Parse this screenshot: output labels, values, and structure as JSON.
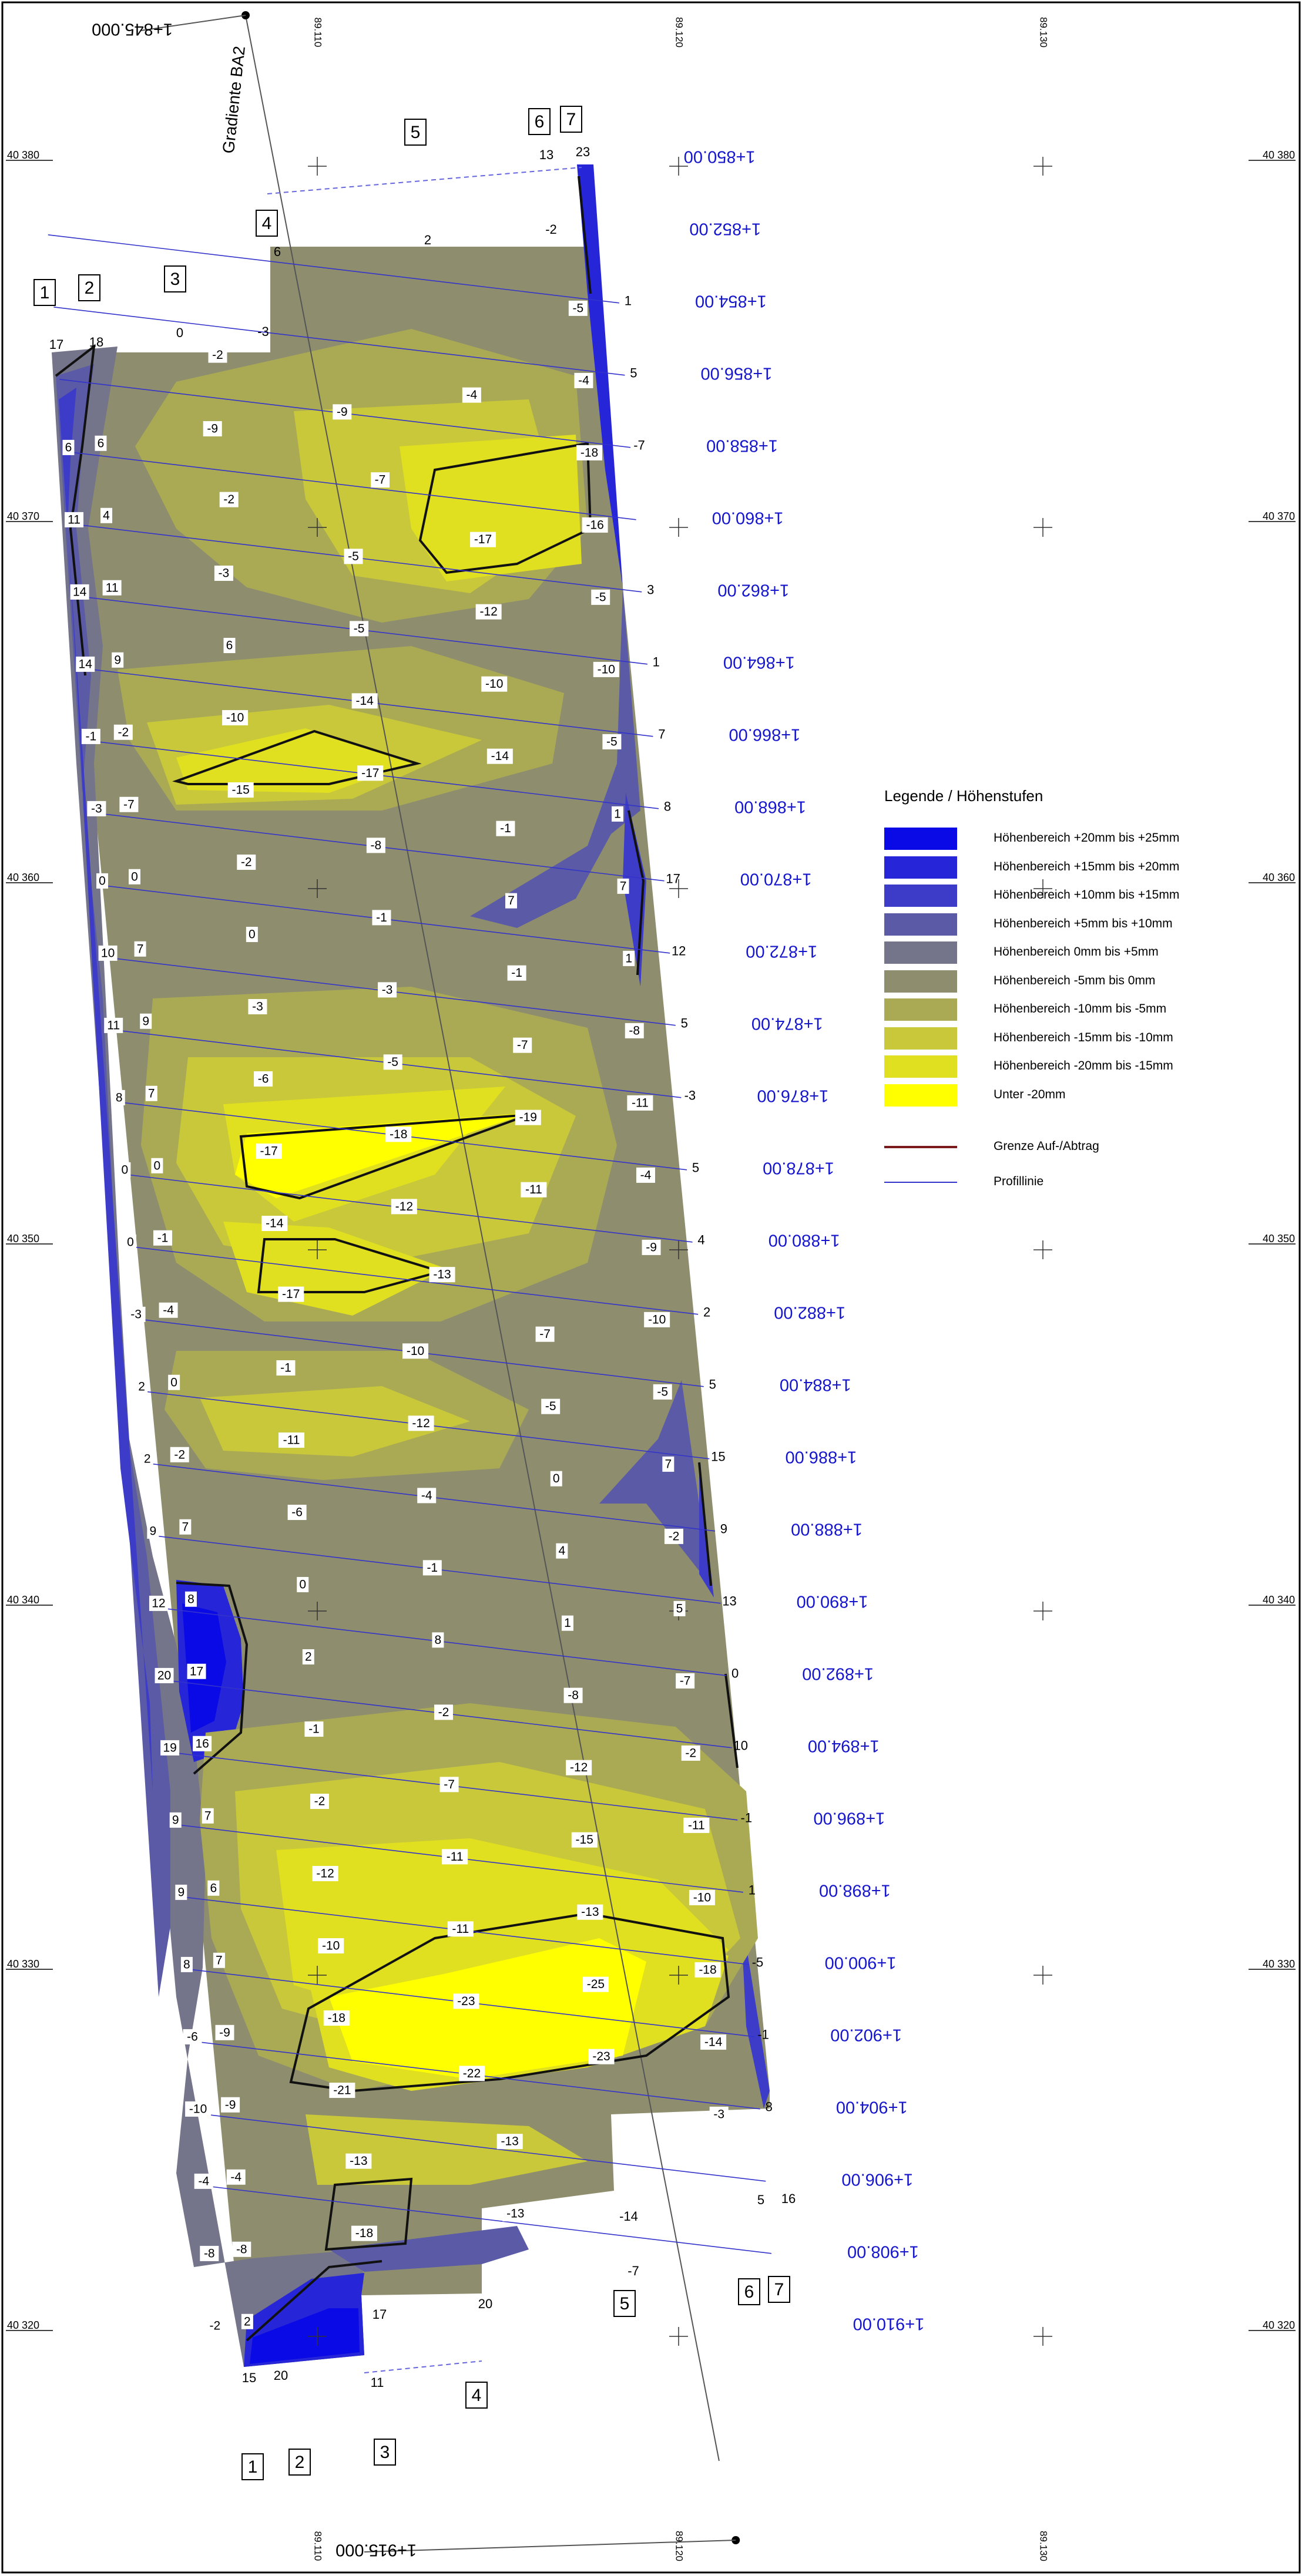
{
  "gradient_label": "Gradiente BA2",
  "chainage_start": "1+845.000",
  "chainage_end": "1+915.000",
  "easting_labels": [
    "89.110",
    "89.120",
    "89.130"
  ],
  "northing_labels": [
    "40 380",
    "40 370",
    "40 360",
    "40 350",
    "40 340",
    "40 330",
    "40 320"
  ],
  "point_numbers": [
    "1",
    "2",
    "3",
    "4",
    "5",
    "6",
    "7"
  ],
  "top_edge_values": [
    "17",
    "18",
    "0",
    "-3",
    "6",
    "2",
    "-2",
    "13",
    "23"
  ],
  "bottom_edge_values": [
    "15",
    "20",
    "17",
    "11",
    "20",
    "-14",
    "-7",
    "5",
    "16"
  ],
  "stations": [
    {
      "label": "1+850.00",
      "left": [],
      "mid": [],
      "right": [],
      "end": ""
    },
    {
      "label": "1+852.00",
      "left": [],
      "mid": [],
      "right": [],
      "end": ""
    },
    {
      "label": "1+854.00",
      "left": [],
      "mid": [
        "-2"
      ],
      "right": [
        "-5"
      ],
      "end": "1"
    },
    {
      "label": "1+856.00",
      "left": [
        "6",
        "6"
      ],
      "mid": [
        "-9",
        "-9",
        "-4"
      ],
      "right": [
        "-4"
      ],
      "end": "5"
    },
    {
      "label": "1+858.00",
      "left": [
        "11",
        "4"
      ],
      "mid": [
        "-2",
        "-7"
      ],
      "right": [
        "-18"
      ],
      "end": "-7"
    },
    {
      "label": "1+860.00",
      "left": [
        "14",
        "11"
      ],
      "mid": [
        "-3",
        "-5",
        "-17"
      ],
      "right": [
        "-16"
      ],
      "end": ""
    },
    {
      "label": "1+862.00",
      "left": [
        "14",
        "9"
      ],
      "mid": [
        "6",
        "-5",
        "-12"
      ],
      "right": [
        "-5"
      ],
      "end": "3"
    },
    {
      "label": "1+864.00",
      "left": [
        "-1",
        "-2"
      ],
      "mid": [
        "-10",
        "-14",
        "-10"
      ],
      "right": [
        "-10"
      ],
      "end": "1"
    },
    {
      "label": "1+866.00",
      "left": [
        "-3",
        "-7"
      ],
      "mid": [
        "-15",
        "-17",
        "-14"
      ],
      "right": [
        "-5"
      ],
      "end": "7"
    },
    {
      "label": "1+868.00",
      "left": [
        "0",
        "0"
      ],
      "mid": [
        "-2",
        "-8",
        "-1"
      ],
      "right": [
        "1"
      ],
      "end": "8"
    },
    {
      "label": "1+870.00",
      "left": [
        "10",
        "7"
      ],
      "mid": [
        "0",
        "-1",
        "7"
      ],
      "right": [
        "7"
      ],
      "end": "17"
    },
    {
      "label": "1+872.00",
      "left": [
        "11",
        "9"
      ],
      "mid": [
        "-3",
        "-3",
        "-1"
      ],
      "right": [
        "1"
      ],
      "end": "12"
    },
    {
      "label": "1+874.00",
      "left": [
        "8",
        "7"
      ],
      "mid": [
        "-6",
        "-5",
        "-7"
      ],
      "right": [
        "-8"
      ],
      "end": "5"
    },
    {
      "label": "1+876.00",
      "left": [
        "0",
        "0"
      ],
      "mid": [
        "-17",
        "-18",
        "-19"
      ],
      "right": [
        "-11"
      ],
      "end": "-3"
    },
    {
      "label": "1+878.00",
      "left": [
        "0",
        "-1"
      ],
      "mid": [
        "-14",
        "-12",
        "-11"
      ],
      "right": [
        "-4"
      ],
      "end": "5"
    },
    {
      "label": "1+880.00",
      "left": [
        "-3",
        "-4"
      ],
      "mid": [
        "-17",
        "-13"
      ],
      "right": [
        "-9"
      ],
      "end": "4"
    },
    {
      "label": "1+882.00",
      "left": [
        "2",
        "0"
      ],
      "mid": [
        "-1",
        "-10",
        "-7"
      ],
      "right": [
        "-10"
      ],
      "end": "2"
    },
    {
      "label": "1+884.00",
      "left": [
        "2",
        "-2"
      ],
      "mid": [
        "-11",
        "-12",
        "-5"
      ],
      "right": [
        "-5"
      ],
      "end": "5"
    },
    {
      "label": "1+886.00",
      "left": [
        "9",
        "7"
      ],
      "mid": [
        "-6",
        "-4",
        "0"
      ],
      "right": [
        "7"
      ],
      "end": "15"
    },
    {
      "label": "1+888.00",
      "left": [
        "12",
        "8"
      ],
      "mid": [
        "0",
        "-1",
        "4"
      ],
      "right": [
        "-2"
      ],
      "end": "9"
    },
    {
      "label": "1+890.00",
      "left": [
        "20",
        "17"
      ],
      "mid": [
        "2",
        "8",
        "1"
      ],
      "right": [
        "5"
      ],
      "end": "13"
    },
    {
      "label": "1+892.00",
      "left": [
        "19",
        "16"
      ],
      "mid": [
        "-1",
        "-2",
        "-8"
      ],
      "right": [
        "-7"
      ],
      "end": "0"
    },
    {
      "label": "1+894.00",
      "left": [
        "9",
        "7"
      ],
      "mid": [
        "-2",
        "-7",
        "-12"
      ],
      "right": [
        "-2"
      ],
      "end": "10"
    },
    {
      "label": "1+896.00",
      "left": [
        "9",
        "6"
      ],
      "mid": [
        "-12",
        "-11",
        "-15"
      ],
      "right": [
        "-11"
      ],
      "end": "-1"
    },
    {
      "label": "1+898.00",
      "left": [
        "8",
        "7"
      ],
      "mid": [
        "-10",
        "-11",
        "-13"
      ],
      "right": [
        "-10"
      ],
      "end": "1"
    },
    {
      "label": "1+900.00",
      "left": [
        "-6",
        "-9"
      ],
      "mid": [
        "-18",
        "-23",
        "-25"
      ],
      "right": [
        "-18"
      ],
      "end": "-5"
    },
    {
      "label": "1+902.00",
      "left": [
        "-10",
        "-9"
      ],
      "mid": [
        "-21",
        "-22",
        "-23"
      ],
      "right": [
        "-14"
      ],
      "end": "-1"
    },
    {
      "label": "1+904.00",
      "left": [
        "-4",
        "-4"
      ],
      "mid": [
        "-13",
        "-13"
      ],
      "right": [
        "-3"
      ],
      "end": "8"
    },
    {
      "label": "1+906.00",
      "left": [
        "-8",
        "-8"
      ],
      "mid": [
        "-18",
        "-13"
      ],
      "right": [],
      "end": ""
    },
    {
      "label": "1+908.00",
      "left": [
        "-2",
        "2"
      ],
      "mid": [],
      "right": [],
      "end": ""
    },
    {
      "label": "1+910.00",
      "left": [],
      "mid": [],
      "right": [],
      "end": ""
    }
  ],
  "legend": {
    "title": "Legende / Höhenstufen",
    "items": [
      {
        "label": "Höhenbereich +20mm bis +25mm",
        "color": "#0a0ae6"
      },
      {
        "label": "Höhenbereich +15mm bis +20mm",
        "color": "#2626d8"
      },
      {
        "label": "Höhenbereich +10mm bis +15mm",
        "color": "#3c3cc8"
      },
      {
        "label": "Höhenbereich +5mm bis +10mm",
        "color": "#5a5aa6"
      },
      {
        "label": "Höhenbereich 0mm bis +5mm",
        "color": "#74748a"
      },
      {
        "label": "Höhenbereich -5mm bis 0mm",
        "color": "#8e8e6e"
      },
      {
        "label": "Höhenbereich -10mm bis -5mm",
        "color": "#aaaa55"
      },
      {
        "label": "Höhenbereich -15mm bis -10mm",
        "color": "#c8c83a"
      },
      {
        "label": "Höhenbereich -20mm bis -15mm",
        "color": "#e0e020"
      },
      {
        "label": "Unter -20mm",
        "color": "#ffff00"
      }
    ],
    "boundary_label": "Grenze Auf-/Abtrag",
    "boundary_color": "#7a1a1a",
    "profile_label": "Profillinie",
    "profile_color": "#3333cc"
  }
}
